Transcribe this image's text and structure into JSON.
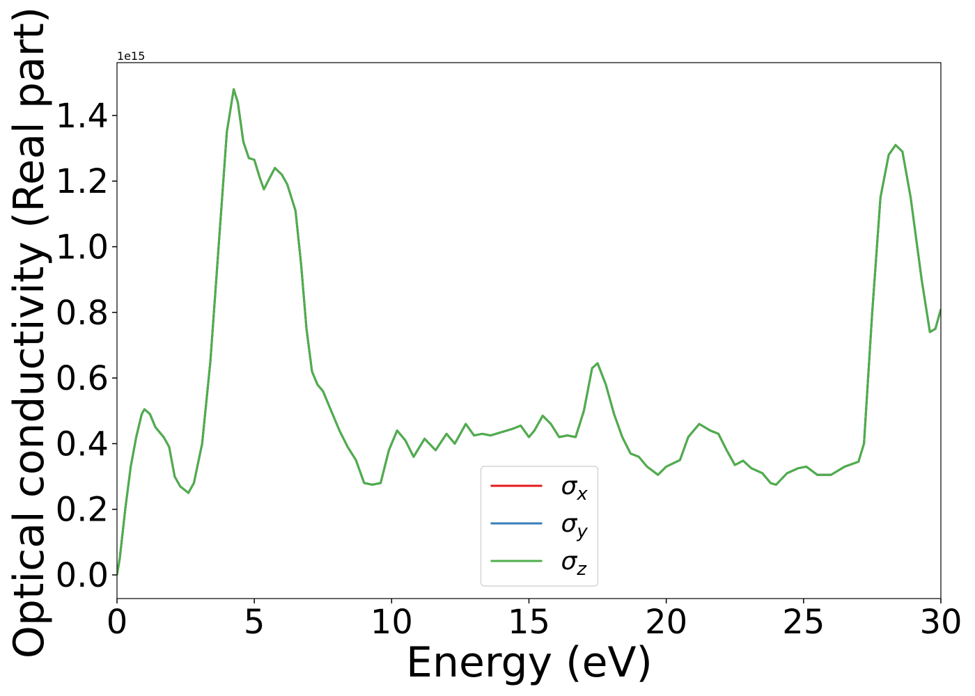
{
  "chart_data": {
    "type": "line",
    "y_label": "Optical conductivity (Real part)",
    "x_label": "Energy (eV)",
    "y_offset_label": "1e15",
    "x": [
      0,
      0.1,
      0.3,
      0.5,
      0.7,
      0.9,
      1.0,
      1.2,
      1.4,
      1.7,
      1.9,
      2.1,
      2.3,
      2.6,
      2.8,
      3.1,
      3.4,
      3.7,
      4.0,
      4.25,
      4.4,
      4.6,
      4.8,
      5.0,
      5.2,
      5.35,
      5.5,
      5.75,
      6.0,
      6.2,
      6.5,
      6.7,
      6.9,
      7.1,
      7.3,
      7.5,
      7.8,
      8.1,
      8.4,
      8.7,
      9.0,
      9.3,
      9.6,
      9.9,
      10.2,
      10.5,
      10.8,
      11.2,
      11.6,
      12.0,
      12.3,
      12.7,
      13.0,
      13.3,
      13.6,
      14.0,
      14.4,
      14.7,
      15.0,
      15.2,
      15.5,
      15.8,
      16.1,
      16.4,
      16.7,
      17.0,
      17.3,
      17.5,
      17.8,
      18.1,
      18.4,
      18.7,
      19.0,
      19.3,
      19.7,
      20.0,
      20.5,
      20.8,
      21.2,
      21.6,
      21.9,
      22.2,
      22.5,
      22.8,
      23.1,
      23.5,
      23.8,
      24.0,
      24.4,
      24.8,
      25.1,
      25.5,
      26.0,
      26.5,
      27.0,
      27.2,
      27.5,
      27.8,
      28.1,
      28.35,
      28.6,
      28.9,
      29.3,
      29.6,
      29.8,
      30.0
    ],
    "series": [
      {
        "name": "σx",
        "color": "#e41a1c",
        "values": [
          0,
          0.05,
          0.2,
          0.33,
          0.42,
          0.49,
          0.505,
          0.49,
          0.45,
          0.42,
          0.39,
          0.3,
          0.27,
          0.25,
          0.28,
          0.4,
          0.65,
          1.0,
          1.35,
          1.48,
          1.44,
          1.32,
          1.27,
          1.265,
          1.21,
          1.175,
          1.2,
          1.24,
          1.22,
          1.19,
          1.11,
          0.95,
          0.75,
          0.62,
          0.58,
          0.56,
          0.5,
          0.44,
          0.39,
          0.35,
          0.28,
          0.275,
          0.28,
          0.38,
          0.44,
          0.41,
          0.36,
          0.415,
          0.38,
          0.43,
          0.4,
          0.46,
          0.425,
          0.43,
          0.425,
          0.435,
          0.445,
          0.455,
          0.42,
          0.44,
          0.485,
          0.46,
          0.42,
          0.425,
          0.42,
          0.5,
          0.63,
          0.645,
          0.58,
          0.49,
          0.42,
          0.37,
          0.36,
          0.33,
          0.305,
          0.33,
          0.35,
          0.42,
          0.46,
          0.44,
          0.43,
          0.38,
          0.335,
          0.348,
          0.325,
          0.31,
          0.28,
          0.275,
          0.31,
          0.325,
          0.33,
          0.305,
          0.305,
          0.33,
          0.345,
          0.4,
          0.8,
          1.15,
          1.28,
          1.31,
          1.29,
          1.15,
          0.9,
          0.74,
          0.75,
          0.81
        ]
      },
      {
        "name": "σy",
        "color": "#377eb8",
        "values": [
          0,
          0.05,
          0.2,
          0.33,
          0.42,
          0.49,
          0.505,
          0.49,
          0.45,
          0.42,
          0.39,
          0.3,
          0.27,
          0.25,
          0.28,
          0.4,
          0.65,
          1.0,
          1.35,
          1.48,
          1.44,
          1.32,
          1.27,
          1.265,
          1.21,
          1.175,
          1.2,
          1.24,
          1.22,
          1.19,
          1.11,
          0.95,
          0.75,
          0.62,
          0.58,
          0.56,
          0.5,
          0.44,
          0.39,
          0.35,
          0.28,
          0.275,
          0.28,
          0.38,
          0.44,
          0.41,
          0.36,
          0.415,
          0.38,
          0.43,
          0.4,
          0.46,
          0.425,
          0.43,
          0.425,
          0.435,
          0.445,
          0.455,
          0.42,
          0.44,
          0.485,
          0.46,
          0.42,
          0.425,
          0.42,
          0.5,
          0.63,
          0.645,
          0.58,
          0.49,
          0.42,
          0.37,
          0.36,
          0.33,
          0.305,
          0.33,
          0.35,
          0.42,
          0.46,
          0.44,
          0.43,
          0.38,
          0.335,
          0.348,
          0.325,
          0.31,
          0.28,
          0.275,
          0.31,
          0.325,
          0.33,
          0.305,
          0.305,
          0.33,
          0.345,
          0.4,
          0.8,
          1.15,
          1.28,
          1.31,
          1.29,
          1.15,
          0.9,
          0.74,
          0.75,
          0.81
        ]
      },
      {
        "name": "σz",
        "color": "#4daf4a",
        "values": [
          0,
          0.05,
          0.2,
          0.33,
          0.42,
          0.49,
          0.505,
          0.49,
          0.45,
          0.42,
          0.39,
          0.3,
          0.27,
          0.25,
          0.28,
          0.4,
          0.65,
          1.0,
          1.35,
          1.48,
          1.44,
          1.32,
          1.27,
          1.265,
          1.21,
          1.175,
          1.2,
          1.24,
          1.22,
          1.19,
          1.11,
          0.95,
          0.75,
          0.62,
          0.58,
          0.56,
          0.5,
          0.44,
          0.39,
          0.35,
          0.28,
          0.275,
          0.28,
          0.38,
          0.44,
          0.41,
          0.36,
          0.415,
          0.38,
          0.43,
          0.4,
          0.46,
          0.425,
          0.43,
          0.425,
          0.435,
          0.445,
          0.455,
          0.42,
          0.44,
          0.485,
          0.46,
          0.42,
          0.425,
          0.42,
          0.5,
          0.63,
          0.645,
          0.58,
          0.49,
          0.42,
          0.37,
          0.36,
          0.33,
          0.305,
          0.33,
          0.35,
          0.42,
          0.46,
          0.44,
          0.43,
          0.38,
          0.335,
          0.348,
          0.325,
          0.31,
          0.28,
          0.275,
          0.31,
          0.325,
          0.33,
          0.305,
          0.305,
          0.33,
          0.345,
          0.4,
          0.8,
          1.15,
          1.28,
          1.31,
          1.29,
          1.15,
          0.9,
          0.74,
          0.75,
          0.81
        ]
      }
    ],
    "xlim": [
      0,
      30
    ],
    "xticks": [
      0,
      5,
      10,
      15,
      20,
      25,
      30
    ],
    "ylim": [
      -0.072,
      1.561
    ],
    "yticks": [
      {
        "value": 0,
        "label": "0.0"
      },
      {
        "value": 0.2,
        "label": "0.2"
      },
      {
        "value": 0.4,
        "label": "0.4"
      },
      {
        "value": 0.6,
        "label": "0.6"
      },
      {
        "value": 0.8,
        "label": "0.8"
      },
      {
        "value": 1.0,
        "label": "1.0"
      },
      {
        "value": 1.2,
        "label": "1.2"
      },
      {
        "value": 1.4,
        "label": "1.4"
      }
    ],
    "legend": "lower center",
    "grid": false
  }
}
